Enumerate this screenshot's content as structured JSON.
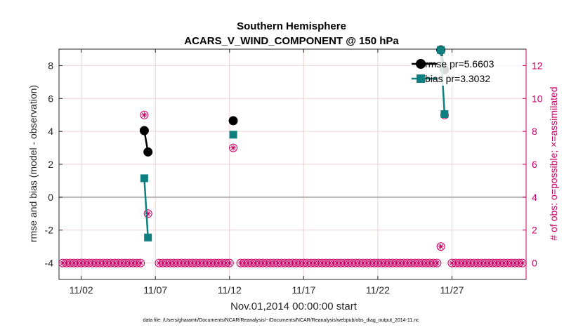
{
  "chart_data": {
    "type": "line",
    "title": [
      "Southern Hemisphere",
      "ACARS_V_WIND_COMPONENT @ 150 hPa"
    ],
    "xlabel": "Nov.01,2014 00:00:00 start",
    "ylabel_left": "rmse and bias (model - observation)",
    "ylabel_right": "# of obs: o=possible; ×=assimilated",
    "footnote": "data file: /Users/gharamti/Documents/NCAR/Reanalysis/~/Documents/NCAR/Reanalysis/webpub/obs_diag_output_2014-11.nc",
    "x_range": [
      0,
      31.5
    ],
    "x_ticks": [
      {
        "label": "11/02",
        "value": 1.5
      },
      {
        "label": "11/07",
        "value": 6.5
      },
      {
        "label": "11/12",
        "value": 11.5
      },
      {
        "label": "11/17",
        "value": 16.5
      },
      {
        "label": "11/22",
        "value": 21.5
      },
      {
        "label": "11/27",
        "value": 26.5
      }
    ],
    "left_axis": {
      "range": [
        -5,
        9
      ],
      "ticks": [
        -4,
        -2,
        0,
        2,
        4,
        6,
        8
      ]
    },
    "right_axis": {
      "range": [
        -1,
        13
      ],
      "ticks": [
        0,
        2,
        4,
        6,
        8,
        10,
        12
      ]
    },
    "zero_line": 0,
    "series": [
      {
        "name": "rmse pr=5.6603",
        "color": "#000000",
        "marker": "circle",
        "segments": [
          [
            [
              5.75,
              4.05
            ],
            [
              6.0,
              2.75
            ]
          ],
          [
            [
              11.75,
              4.65
            ]
          ],
          [
            [
              25.75,
              8.95
            ],
            [
              26.0,
              7.75
            ]
          ]
        ]
      },
      {
        "name": "bias pr=3.3032",
        "color": "#0f7f7f",
        "marker": "square",
        "segments": [
          [
            [
              5.75,
              1.15
            ],
            [
              6.0,
              -2.45
            ]
          ],
          [
            [
              11.75,
              3.8
            ]
          ],
          [
            [
              25.75,
              8.95
            ],
            [
              26.0,
              5.05
            ]
          ]
        ]
      }
    ],
    "obs_counts": {
      "color": "#cc0066",
      "start": 0.25,
      "step": 0.25,
      "nonzero": [
        {
          "x": 5.75,
          "value": 9
        },
        {
          "x": 6.0,
          "value": 3
        },
        {
          "x": 11.75,
          "value": 7
        },
        {
          "x": 25.75,
          "value": 1
        },
        {
          "x": 26.0,
          "value": 9
        }
      ],
      "missing_x": [
        6.25,
        6.5,
        12.0,
        26.25
      ]
    },
    "legend": {
      "position": "top-right"
    }
  }
}
